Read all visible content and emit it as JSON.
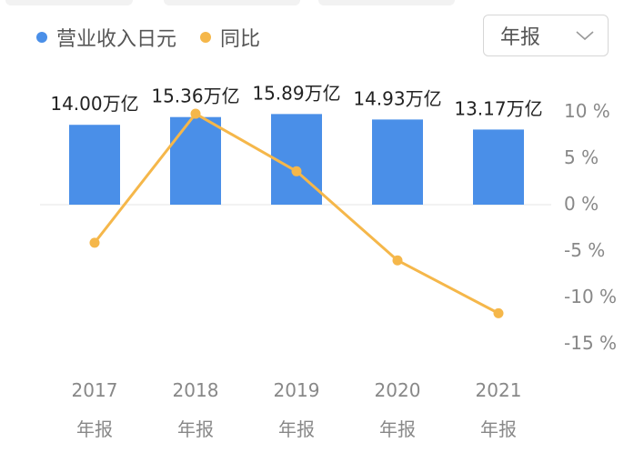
{
  "legend": {
    "revenue_label": "营业收入日元",
    "yoy_label": "同比"
  },
  "period_select": {
    "value": "年报"
  },
  "colors": {
    "bar": "#4a8fe8",
    "line": "#f5b74a",
    "axis_text": "#555555",
    "tick_text": "#888888"
  },
  "chart_data": {
    "type": "bar",
    "categories": [
      "2017",
      "2018",
      "2019",
      "2020",
      "2021"
    ],
    "category_sublabels": [
      "年报",
      "年报",
      "年报",
      "年报",
      "年报"
    ],
    "series": [
      {
        "name": "营业收入日元",
        "type": "bar",
        "values": [
          14.0,
          15.36,
          15.89,
          14.93,
          13.17
        ],
        "data_labels": [
          "14.00万亿",
          "15.36万亿",
          "15.89万亿",
          "14.93万亿",
          "13.17万亿"
        ],
        "unit": "万亿"
      },
      {
        "name": "同比",
        "type": "line",
        "values": [
          -4.2,
          9.7,
          3.5,
          -6.1,
          -11.8
        ],
        "unit": "%"
      }
    ],
    "y2_ticks": [
      10,
      5,
      0,
      -5,
      -10,
      -15
    ],
    "y2_tick_labels": [
      "10 %",
      "5 %",
      "0 %",
      "-5 %",
      "-10 %",
      "-15 %"
    ],
    "y2lim": [
      -15,
      10
    ],
    "title": "",
    "xlabel": "",
    "ylabel": ""
  }
}
